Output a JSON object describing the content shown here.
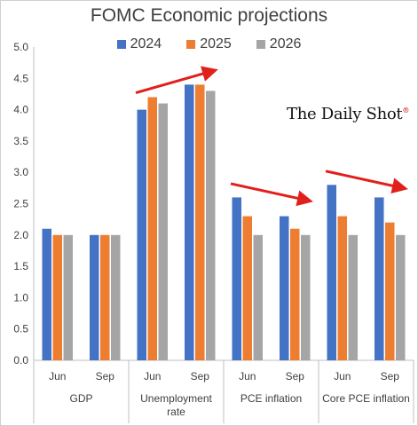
{
  "chart_data": {
    "type": "bar",
    "title": "FOMC Economic projections",
    "brand": "The Daily Shot",
    "brand_mark": "®",
    "groups": [
      {
        "label": "GDP",
        "categories": [
          "Jun",
          "Sep"
        ]
      },
      {
        "label": "Unemployment rate",
        "label_lines": [
          "Unemployment",
          "rate"
        ],
        "categories": [
          "Jun",
          "Sep"
        ]
      },
      {
        "label": "PCE inflation",
        "categories": [
          "Jun",
          "Sep"
        ]
      },
      {
        "label": "Core PCE inflation",
        "categories": [
          "Jun",
          "Sep"
        ]
      }
    ],
    "series": [
      {
        "name": "2024",
        "color": "#4472c4",
        "values": [
          2.1,
          2.0,
          4.0,
          4.4,
          2.6,
          2.3,
          2.8,
          2.6
        ]
      },
      {
        "name": "2025",
        "color": "#ed7d31",
        "values": [
          2.0,
          2.0,
          4.2,
          4.4,
          2.3,
          2.1,
          2.3,
          2.2
        ]
      },
      {
        "name": "2026",
        "color": "#a5a5a5",
        "values": [
          2.0,
          2.0,
          4.1,
          4.3,
          2.0,
          2.0,
          2.0,
          2.0
        ]
      }
    ],
    "ylim": [
      0,
      5
    ],
    "yticks": [
      "0.0",
      "0.5",
      "1.0",
      "1.5",
      "2.0",
      "2.5",
      "3.0",
      "3.5",
      "4.0",
      "4.5",
      "5.0"
    ],
    "grid": false,
    "legend_position": "top",
    "annotations": [
      {
        "type": "arrow",
        "direction": "up",
        "color": "#e0201b",
        "group": "Unemployment rate"
      },
      {
        "type": "arrow",
        "direction": "down",
        "color": "#e0201b",
        "group": "PCE inflation"
      },
      {
        "type": "arrow",
        "direction": "down",
        "color": "#e0201b",
        "group": "Core PCE inflation"
      }
    ]
  }
}
